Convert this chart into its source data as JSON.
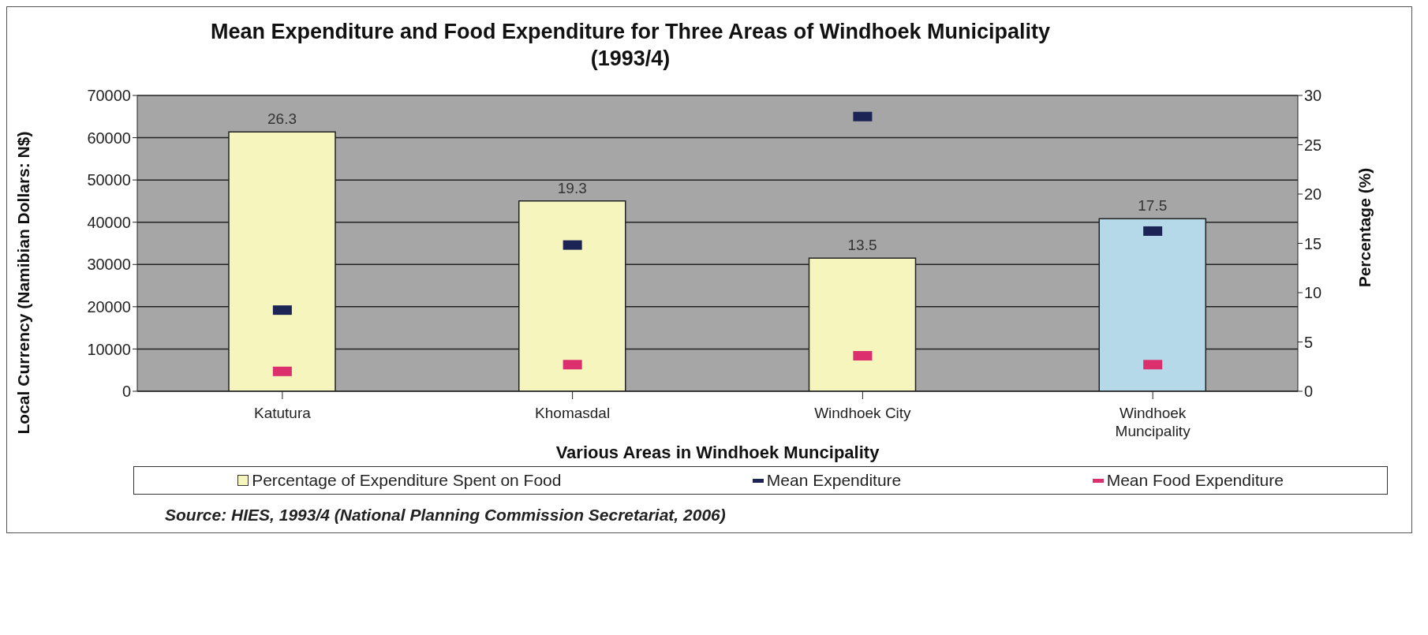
{
  "chart_data": {
    "type": "bar",
    "title": "Mean Expenditure and Food Expenditure for Three Areas of Windhoek Municipality (1993/4)",
    "xlabel": "Various Areas in Windhoek Muncipality",
    "ylabel": "Local Currency (Namibian Dollars: N$)",
    "y2label": "Percentage (%)",
    "categories": [
      "Katutura",
      "Khomasdal",
      "Windhoek City",
      "Windhoek Muncipality"
    ],
    "series": [
      {
        "name": "Percentage of Expenditure Spent on Food",
        "axis": "y2",
        "color": "#f5f5bd",
        "colors": [
          "#f5f5bd",
          "#f5f5bd",
          "#f5f5bd",
          "#b6d9ea"
        ],
        "values": [
          26.3,
          19.3,
          13.5,
          17.5
        ],
        "value_labels": [
          "26.3",
          "19.3",
          "13.5",
          "17.5"
        ]
      },
      {
        "name": "Mean Expenditure",
        "type": "scatter",
        "color": "#1c2456",
        "values": [
          19200,
          34600,
          65000,
          37900
        ]
      },
      {
        "name": "Mean Food Expenditure",
        "type": "scatter",
        "color": "#dc2f6e",
        "values": [
          4700,
          6300,
          8400,
          6300
        ]
      }
    ],
    "ylim": [
      0,
      70000
    ],
    "yticks": [
      0,
      10000,
      20000,
      30000,
      40000,
      50000,
      60000,
      70000
    ],
    "y2lim": [
      0,
      30
    ],
    "y2ticks": [
      0,
      5,
      10,
      15,
      20,
      25,
      30
    ],
    "grid": "y",
    "legend": "bottom",
    "annotations": [
      "Source: HIES, 1993/4  (National Planning Commission Secretariat, 2006)"
    ]
  }
}
